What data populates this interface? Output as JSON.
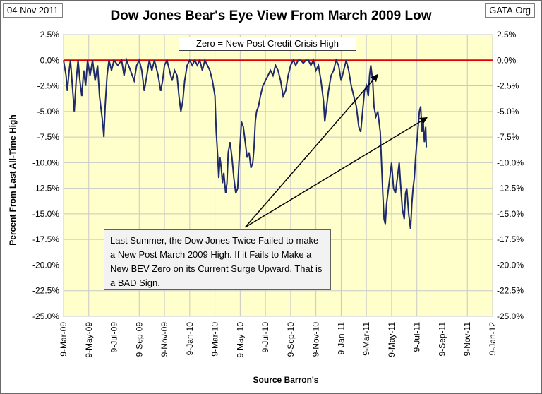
{
  "header": {
    "date": "04 Nov 2011",
    "site": "GATA.Org",
    "title": "Dow Jones Bear's Eye View From March 2009 Low"
  },
  "legend": "Zero = New Post Credit Crisis High",
  "note": "Last Summer, the Dow Jones Twice Failed to make a New Post March 2009 High.  If it Fails to Make a New BEV Zero on its Current Surge Upward, That is a BAD Sign.",
  "colors": {
    "plot_bg": "#ffffcc",
    "series": "#1f2a6b",
    "zero_line": "#e00000",
    "grid": "#c8c8c8",
    "arrow": "#000000"
  },
  "chart_data": {
    "type": "line",
    "title": "Dow Jones Bear's Eye View From March 2009 Low",
    "xlabel": "Source Barron's",
    "ylabel": "Percent From Last All-Time High",
    "ylim": [
      -25,
      2.5
    ],
    "y_ticks": [
      "2.5%",
      "0.0%",
      "-2.5%",
      "-5.0%",
      "-7.5%",
      "-10.0%",
      "-12.5%",
      "-15.0%",
      "-17.5%",
      "-20.0%",
      "-22.5%",
      "-25.0%"
    ],
    "y_tick_values": [
      2.5,
      0,
      -2.5,
      -5,
      -7.5,
      -10,
      -12.5,
      -15,
      -17.5,
      -20,
      -22.5,
      -25
    ],
    "x_ticks": [
      "9-Mar-09",
      "9-May-09",
      "9-Jul-09",
      "9-Sep-09",
      "9-Nov-09",
      "9-Jan-10",
      "9-Mar-10",
      "9-May-10",
      "9-Jul-10",
      "9-Sep-10",
      "9-Nov-10",
      "9-Jan-11",
      "9-Mar-11",
      "9-May-11",
      "9-Jul-11",
      "9-Sep-11",
      "9-Nov-11",
      "9-Jan-12"
    ],
    "x_range_months": [
      0,
      34
    ],
    "series": [
      {
        "name": "Dow Jones BEV",
        "points": [
          [
            0.0,
            0.0
          ],
          [
            0.2,
            -1.5
          ],
          [
            0.3,
            -3.0
          ],
          [
            0.45,
            -1.0
          ],
          [
            0.55,
            0.0
          ],
          [
            0.7,
            -2.5
          ],
          [
            0.85,
            -5.0
          ],
          [
            1.0,
            -2.0
          ],
          [
            1.15,
            0.0
          ],
          [
            1.3,
            -2.0
          ],
          [
            1.45,
            -3.5
          ],
          [
            1.6,
            -1.0
          ],
          [
            1.75,
            -2.5
          ],
          [
            1.9,
            0.0
          ],
          [
            2.1,
            -1.5
          ],
          [
            2.3,
            0.0
          ],
          [
            2.5,
            -2.0
          ],
          [
            2.7,
            -0.5
          ],
          [
            2.85,
            -3.5
          ],
          [
            3.0,
            -5.0
          ],
          [
            3.1,
            -6.0
          ],
          [
            3.2,
            -7.5
          ],
          [
            3.3,
            -4.5
          ],
          [
            3.45,
            -1.5
          ],
          [
            3.6,
            0.0
          ],
          [
            3.8,
            -1.0
          ],
          [
            4.0,
            0.0
          ],
          [
            4.3,
            -0.5
          ],
          [
            4.6,
            0.0
          ],
          [
            4.8,
            -1.5
          ],
          [
            5.0,
            0.0
          ],
          [
            5.3,
            -1.0
          ],
          [
            5.6,
            -2.0
          ],
          [
            5.8,
            -0.5
          ],
          [
            6.0,
            0.0
          ],
          [
            6.2,
            -1.0
          ],
          [
            6.4,
            -3.0
          ],
          [
            6.6,
            -1.5
          ],
          [
            6.8,
            0.0
          ],
          [
            7.0,
            -1.0
          ],
          [
            7.2,
            0.0
          ],
          [
            7.5,
            -1.5
          ],
          [
            7.7,
            -3.0
          ],
          [
            7.85,
            -2.0
          ],
          [
            8.0,
            -0.5
          ],
          [
            8.2,
            0.0
          ],
          [
            8.4,
            -1.0
          ],
          [
            8.6,
            -2.0
          ],
          [
            8.8,
            -1.0
          ],
          [
            9.0,
            -1.5
          ],
          [
            9.15,
            -3.5
          ],
          [
            9.3,
            -5.0
          ],
          [
            9.45,
            -4.0
          ],
          [
            9.6,
            -2.0
          ],
          [
            9.8,
            -0.5
          ],
          [
            10.0,
            0.0
          ],
          [
            10.2,
            -0.5
          ],
          [
            10.4,
            0.0
          ],
          [
            10.6,
            -0.5
          ],
          [
            10.8,
            0.0
          ],
          [
            11.0,
            -1.0
          ],
          [
            11.2,
            0.0
          ],
          [
            11.4,
            -0.5
          ],
          [
            11.6,
            -1.0
          ],
          [
            11.8,
            -2.0
          ],
          [
            12.0,
            -3.5
          ],
          [
            12.1,
            -7.0
          ],
          [
            12.2,
            -9.0
          ],
          [
            12.3,
            -11.5
          ],
          [
            12.4,
            -9.5
          ],
          [
            12.5,
            -10.5
          ],
          [
            12.6,
            -12.0
          ],
          [
            12.7,
            -11.0
          ],
          [
            12.85,
            -13.0
          ],
          [
            12.95,
            -12.0
          ],
          [
            13.05,
            -9.0
          ],
          [
            13.2,
            -8.0
          ],
          [
            13.35,
            -9.5
          ],
          [
            13.5,
            -11.5
          ],
          [
            13.65,
            -13.0
          ],
          [
            13.8,
            -12.5
          ],
          [
            13.9,
            -10.0
          ],
          [
            14.0,
            -8.0
          ],
          [
            14.1,
            -6.0
          ],
          [
            14.25,
            -6.5
          ],
          [
            14.4,
            -8.0
          ],
          [
            14.55,
            -9.5
          ],
          [
            14.7,
            -9.0
          ],
          [
            14.85,
            -10.5
          ],
          [
            15.0,
            -10.0
          ],
          [
            15.1,
            -8.5
          ],
          [
            15.2,
            -6.0
          ],
          [
            15.3,
            -5.0
          ],
          [
            15.45,
            -4.5
          ],
          [
            15.6,
            -3.5
          ],
          [
            15.8,
            -2.5
          ],
          [
            16.0,
            -2.0
          ],
          [
            16.2,
            -1.5
          ],
          [
            16.4,
            -1.0
          ],
          [
            16.6,
            -1.5
          ],
          [
            16.8,
            -0.5
          ],
          [
            17.0,
            -1.0
          ],
          [
            17.2,
            -2.0
          ],
          [
            17.4,
            -3.5
          ],
          [
            17.6,
            -3.0
          ],
          [
            17.8,
            -1.5
          ],
          [
            18.0,
            -0.5
          ],
          [
            18.2,
            0.0
          ],
          [
            18.4,
            -0.5
          ],
          [
            18.6,
            0.0
          ],
          [
            18.8,
            0.0
          ],
          [
            19.0,
            -0.3
          ],
          [
            19.2,
            0.0
          ],
          [
            19.4,
            0.0
          ],
          [
            19.6,
            -0.5
          ],
          [
            19.8,
            0.0
          ],
          [
            20.0,
            -1.0
          ],
          [
            20.2,
            -0.5
          ],
          [
            20.4,
            -2.0
          ],
          [
            20.6,
            -4.0
          ],
          [
            20.7,
            -6.0
          ],
          [
            20.8,
            -5.0
          ],
          [
            21.0,
            -3.0
          ],
          [
            21.2,
            -1.5
          ],
          [
            21.4,
            -1.0
          ],
          [
            21.6,
            0.0
          ],
          [
            21.8,
            -0.5
          ],
          [
            22.0,
            -2.0
          ],
          [
            22.2,
            -1.0
          ],
          [
            22.4,
            0.0
          ],
          [
            22.6,
            -1.0
          ],
          [
            22.8,
            -2.5
          ],
          [
            23.0,
            -3.5
          ],
          [
            23.2,
            -4.5
          ],
          [
            23.4,
            -6.5
          ],
          [
            23.55,
            -7.0
          ],
          [
            23.7,
            -5.0
          ],
          [
            23.85,
            -3.0
          ],
          [
            24.0,
            -2.5
          ],
          [
            24.15,
            -3.5
          ],
          [
            24.25,
            -1.5
          ],
          [
            24.35,
            -0.5
          ],
          [
            24.5,
            -2.0
          ],
          [
            24.6,
            -4.5
          ],
          [
            24.75,
            -5.5
          ],
          [
            24.9,
            -5.0
          ],
          [
            25.0,
            -6.0
          ],
          [
            25.1,
            -7.0
          ],
          [
            25.2,
            -10.0
          ],
          [
            25.3,
            -13.0
          ],
          [
            25.4,
            -15.5
          ],
          [
            25.5,
            -16.0
          ],
          [
            25.6,
            -14.0
          ],
          [
            25.75,
            -12.5
          ],
          [
            25.9,
            -11.0
          ],
          [
            26.0,
            -10.0
          ],
          [
            26.15,
            -12.5
          ],
          [
            26.3,
            -13.0
          ],
          [
            26.45,
            -11.5
          ],
          [
            26.6,
            -10.0
          ],
          [
            26.7,
            -12.0
          ],
          [
            26.85,
            -14.5
          ],
          [
            27.0,
            -15.5
          ],
          [
            27.1,
            -13.0
          ],
          [
            27.2,
            -12.5
          ],
          [
            27.35,
            -15.0
          ],
          [
            27.5,
            -16.5
          ],
          [
            27.6,
            -14.0
          ],
          [
            27.7,
            -12.5
          ],
          [
            27.8,
            -11.5
          ],
          [
            27.9,
            -9.5
          ],
          [
            28.0,
            -8.0
          ],
          [
            28.1,
            -6.5
          ],
          [
            28.2,
            -5.0
          ],
          [
            28.3,
            -4.5
          ],
          [
            28.4,
            -7.0
          ],
          [
            28.5,
            -6.0
          ],
          [
            28.6,
            -8.0
          ],
          [
            28.7,
            -6.5
          ],
          [
            28.75,
            -8.5
          ]
        ]
      }
    ],
    "annotations": [
      {
        "text": "Zero = New Post Credit Crisis High"
      },
      {
        "text": "Last Summer, the Dow Jones Twice Failed to make a New Post March 2009 High.  If it Fails to Make a New BEV Zero on its Current Surge Upward, That is a BAD Sign."
      }
    ],
    "arrows": [
      {
        "from": [
          14.4,
          -16.3
        ],
        "to": [
          24.9,
          -1.4
        ]
      },
      {
        "from": [
          14.4,
          -16.3
        ],
        "to": [
          28.8,
          -5.6
        ]
      }
    ]
  }
}
